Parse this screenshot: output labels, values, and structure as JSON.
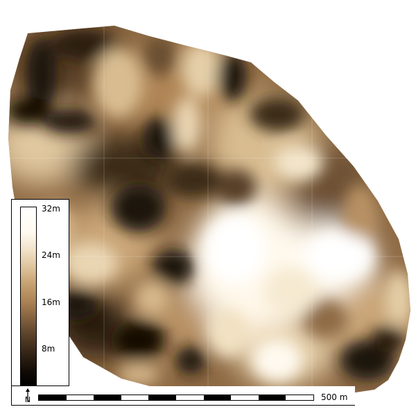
{
  "map": {
    "type": "elevation-raster",
    "color_ramp": {
      "low": "#000000",
      "mid": "#b08656",
      "high": "#ffffff"
    }
  },
  "legend": {
    "labels": [
      "32m",
      "24m",
      "16m",
      "8m"
    ],
    "values_m": [
      32,
      24,
      16,
      8
    ]
  },
  "scale_bar": {
    "label": "500 m",
    "segments": 10
  },
  "north_arrow": {
    "label": "N",
    "icon": "north-arrow-icon"
  }
}
